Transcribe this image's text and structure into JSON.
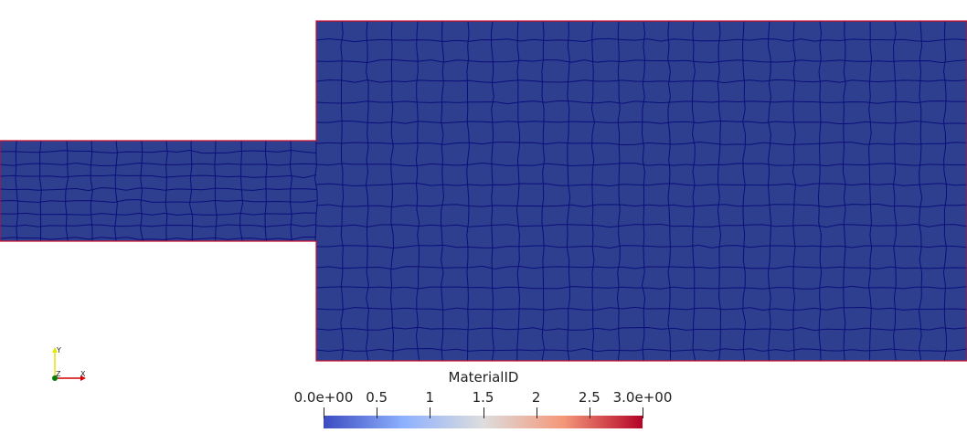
{
  "colors": {
    "background": "#ffffff",
    "mesh_fill": "#2f3f8f",
    "mesh_lines": "#0a0f7a",
    "boundary": "#c8102e",
    "colormap_low": "#3b4cc0",
    "colormap_mid": "#dddddd",
    "colormap_high": "#b40426"
  },
  "orientation_axes": {
    "y_label": "Y",
    "x_label": "X",
    "z_label": "Z"
  },
  "colorbar": {
    "title": "MaterialID",
    "tick_labels": [
      "0.0e+00",
      "0.5",
      "1",
      "1.5",
      "2",
      "2.5",
      "3.0e+00"
    ]
  }
}
